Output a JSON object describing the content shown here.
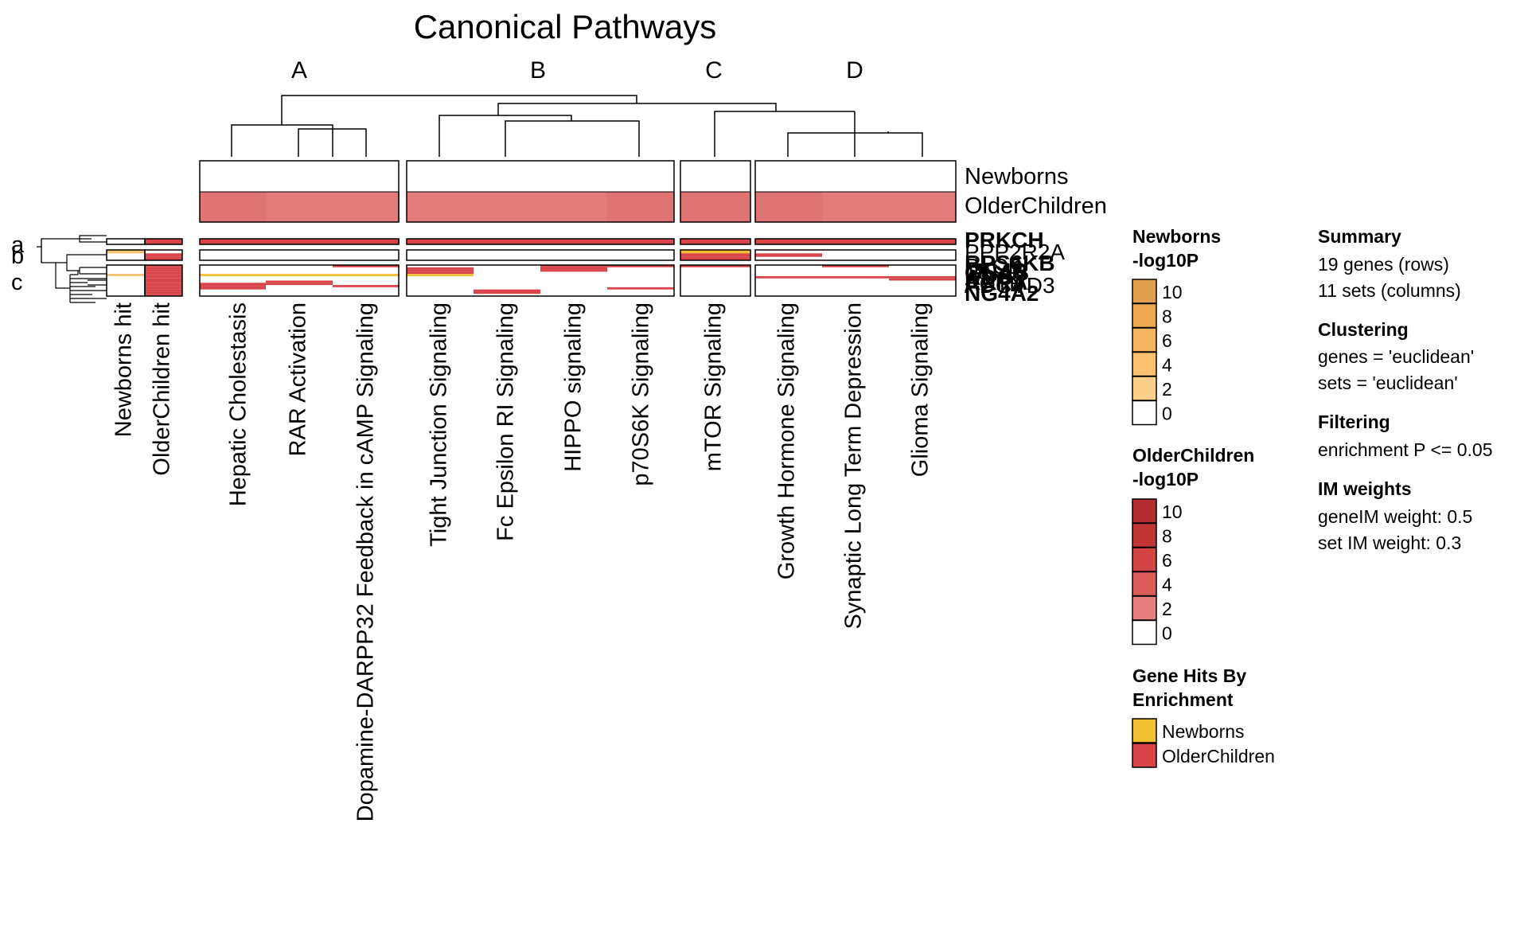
{
  "chart_data": {
    "type": "heatmap",
    "title": "Canonical Pathways",
    "column_clusters": [
      "A",
      "B",
      "C",
      "D"
    ],
    "columns": [
      {
        "name": "Hepatic Cholestasis",
        "cluster": "A"
      },
      {
        "name": "RAR Activation",
        "cluster": "A"
      },
      {
        "name": "Dopamine-DARPP32 Feedback in cAMP Signaling",
        "cluster": "A"
      },
      {
        "name": "Tight Junction Signaling",
        "cluster": "B"
      },
      {
        "name": "Fc Epsilon RI Signaling",
        "cluster": "B"
      },
      {
        "name": "HIPPO signaling",
        "cluster": "B"
      },
      {
        "name": "p70S6K Signaling",
        "cluster": "B"
      },
      {
        "name": "mTOR Signaling",
        "cluster": "C"
      },
      {
        "name": "Growth Hormone Signaling",
        "cluster": "D"
      },
      {
        "name": "Synaptic Long Term Depression",
        "cluster": "D"
      },
      {
        "name": "Glioma Signaling",
        "cluster": "D"
      }
    ],
    "enrichment_rows": [
      {
        "name": "Newborns",
        "values": [
          0,
          0,
          0,
          0,
          0,
          0,
          0,
          0,
          0,
          0,
          0
        ]
      },
      {
        "name": "OlderChildren",
        "values": [
          3.5,
          3.2,
          2.8,
          3.0,
          3.2,
          3.0,
          3.4,
          3.6,
          3.4,
          2.9,
          3.2
        ]
      }
    ],
    "row_clusters": [
      "a",
      "b",
      "c"
    ],
    "gene_hit_columns": [
      "Newborns hit",
      "OlderChildren hit"
    ],
    "gene_label_overlap_fragments": [
      "PRKCH",
      "PPP2R2A",
      "RPS6KB",
      "MC4R",
      "ADCY",
      "PLCB",
      "GNAS",
      "RXRA",
      "ACTB",
      "ADCYD3",
      "NG4A2"
    ],
    "heatmap_rows": [
      {
        "cluster": "a",
        "hit": [
          0,
          1
        ],
        "values": [
          5,
          5,
          5,
          5,
          5,
          5,
          5,
          5,
          5,
          5,
          5
        ]
      },
      {
        "cluster": "a",
        "hit": [
          0,
          1
        ],
        "values": [
          5,
          5,
          5,
          3,
          5,
          3,
          5,
          5,
          5,
          5,
          5
        ]
      },
      {
        "cluster": "b",
        "hit": [
          1,
          0
        ],
        "values": [
          0,
          0,
          0,
          0,
          0,
          0,
          0,
          -5,
          0,
          0,
          0
        ]
      },
      {
        "cluster": "b",
        "hit": [
          0,
          1
        ],
        "values": [
          0,
          0,
          0,
          0,
          0,
          0,
          0,
          5,
          5,
          0,
          0
        ]
      },
      {
        "cluster": "b",
        "hit": [
          0,
          1
        ],
        "values": [
          0,
          0,
          0,
          0,
          0,
          0,
          0,
          5,
          0,
          0,
          0
        ]
      },
      {
        "cluster": "c",
        "hit": [
          0,
          1
        ],
        "values": [
          0,
          0,
          5,
          0,
          0,
          5,
          5,
          5,
          0,
          5,
          0
        ]
      },
      {
        "cluster": "c",
        "hit": [
          0,
          1
        ],
        "values": [
          0,
          0,
          0,
          5,
          0,
          5,
          0,
          0,
          0,
          0,
          0
        ]
      },
      {
        "cluster": "c",
        "hit": [
          0,
          1
        ],
        "values": [
          0,
          0,
          0,
          5,
          0,
          5,
          0,
          0,
          0,
          0,
          0
        ]
      },
      {
        "cluster": "c",
        "hit": [
          0,
          1
        ],
        "values": [
          0,
          0,
          0,
          5,
          0,
          0,
          0,
          0,
          0,
          0,
          0
        ]
      },
      {
        "cluster": "c",
        "hit": [
          1,
          1
        ],
        "values": [
          -5,
          -5,
          -5,
          -5,
          0,
          0,
          0,
          0,
          0,
          0,
          0
        ]
      },
      {
        "cluster": "c",
        "hit": [
          0,
          1
        ],
        "values": [
          0,
          0,
          0,
          0,
          0,
          0,
          0,
          0,
          5,
          5,
          5
        ]
      },
      {
        "cluster": "c",
        "hit": [
          0,
          1
        ],
        "values": [
          0,
          0,
          0,
          0,
          0,
          0,
          0,
          0,
          0,
          0,
          5
        ]
      },
      {
        "cluster": "c",
        "hit": [
          0,
          1
        ],
        "values": [
          0,
          5,
          0,
          0,
          0,
          0,
          0,
          0,
          0,
          0,
          0
        ]
      },
      {
        "cluster": "c",
        "hit": [
          0,
          1
        ],
        "values": [
          5,
          5,
          0,
          0,
          0,
          0,
          0,
          0,
          0,
          0,
          0
        ]
      },
      {
        "cluster": "c",
        "hit": [
          0,
          1
        ],
        "values": [
          5,
          0,
          5,
          0,
          0,
          0,
          0,
          0,
          0,
          0,
          0
        ]
      },
      {
        "cluster": "c",
        "hit": [
          0,
          1
        ],
        "values": [
          5,
          0,
          0,
          0,
          0,
          0,
          5,
          0,
          0,
          0,
          0
        ]
      },
      {
        "cluster": "c",
        "hit": [
          0,
          1
        ],
        "values": [
          0,
          0,
          0,
          0,
          5,
          0,
          0,
          0,
          0,
          0,
          0
        ]
      },
      {
        "cluster": "c",
        "hit": [
          0,
          1
        ],
        "values": [
          0,
          0,
          0,
          0,
          5,
          0,
          0,
          0,
          0,
          0,
          0
        ]
      },
      {
        "cluster": "c",
        "hit": [
          0,
          1
        ],
        "values": [
          0,
          0,
          0,
          0,
          0,
          0,
          0,
          0,
          0,
          0,
          0
        ]
      }
    ],
    "legends": {
      "newborns": {
        "title_line1": "Newborns",
        "title_line2": "-log10P",
        "ticks": [
          "10",
          "8",
          "6",
          "4",
          "2",
          "0"
        ],
        "colors": [
          "#e0a050",
          "#eea850",
          "#f7b45e",
          "#fbc070",
          "#fdd08a",
          "#ffffff"
        ]
      },
      "older": {
        "title_line1": "OlderChildren",
        "title_line2": "-log10P",
        "ticks": [
          "10",
          "8",
          "6",
          "4",
          "2",
          "0"
        ],
        "colors": [
          "#b22c30",
          "#c23536",
          "#d24444",
          "#dc5c5c",
          "#e68080",
          "#ffffff"
        ]
      },
      "hits": {
        "title_line1": "Gene Hits By",
        "title_line2": "Enrichment",
        "items": [
          {
            "label": "Newborns",
            "color": "#f0c030"
          },
          {
            "label": "OlderChildren",
            "color": "#d9444a"
          }
        ]
      }
    },
    "summary": {
      "heading": "Summary",
      "rows_text": "19 genes (rows)",
      "cols_text": "11 sets (columns)",
      "clustering_heading": "Clustering",
      "genes_dist": "genes = 'euclidean'",
      "sets_dist": "sets = 'euclidean'",
      "filtering_heading": "Filtering",
      "filter_text": "enrichment P <= 0.05",
      "weights_heading": "IM weights",
      "gene_weight": "geneIM weight: 0.5",
      "set_weight": "set IM weight: 0.3"
    },
    "colors": {
      "newborns_hit": "#f0c030",
      "older_hit": "#d9444a",
      "older_enrich": "#e07878",
      "border": "#000000"
    }
  }
}
